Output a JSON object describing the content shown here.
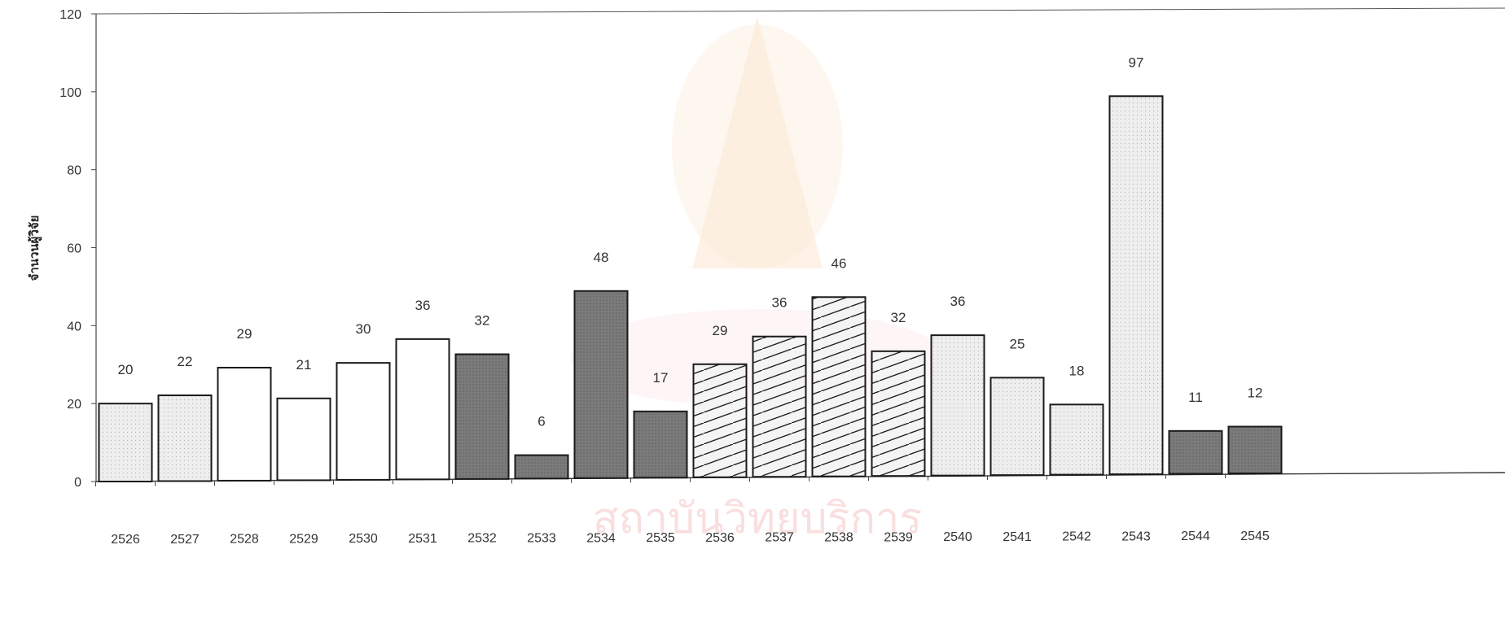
{
  "chart_data": {
    "type": "bar",
    "title": "",
    "xlabel": "",
    "ylabel": "จำนวนผู้วิจัย",
    "ylim": [
      0,
      120
    ],
    "yticks": [
      0,
      20,
      40,
      60,
      80,
      100,
      120
    ],
    "grid": false,
    "categories": [
      "2526",
      "2527",
      "2528",
      "2529",
      "2530",
      "2531",
      "2532",
      "2533",
      "2534",
      "2535",
      "2536",
      "2537",
      "2538",
      "2539",
      "2540",
      "2541",
      "2542",
      "2543",
      "2544",
      "2545"
    ],
    "values": [
      20,
      22,
      29,
      21,
      30,
      36,
      32,
      6,
      48,
      17,
      29,
      36,
      46,
      32,
      36,
      25,
      18,
      97,
      11,
      12
    ],
    "fills": [
      "light-dotted",
      "light-dotted",
      "white",
      "white",
      "white",
      "white",
      "dark",
      "dark",
      "dark",
      "dark",
      "hatched",
      "hatched",
      "hatched",
      "hatched",
      "light-dotted",
      "light-dotted",
      "light-dotted",
      "light-dotted",
      "dark",
      "dark"
    ],
    "colors": {
      "light-dotted": "#ececec",
      "white": "#ffffff",
      "dark": "#7f7f7f",
      "hatched": "#f3f3f3",
      "stroke": "#1a1a1a"
    }
  },
  "watermark": {
    "text": "สถาบันวิทยบริการ"
  }
}
